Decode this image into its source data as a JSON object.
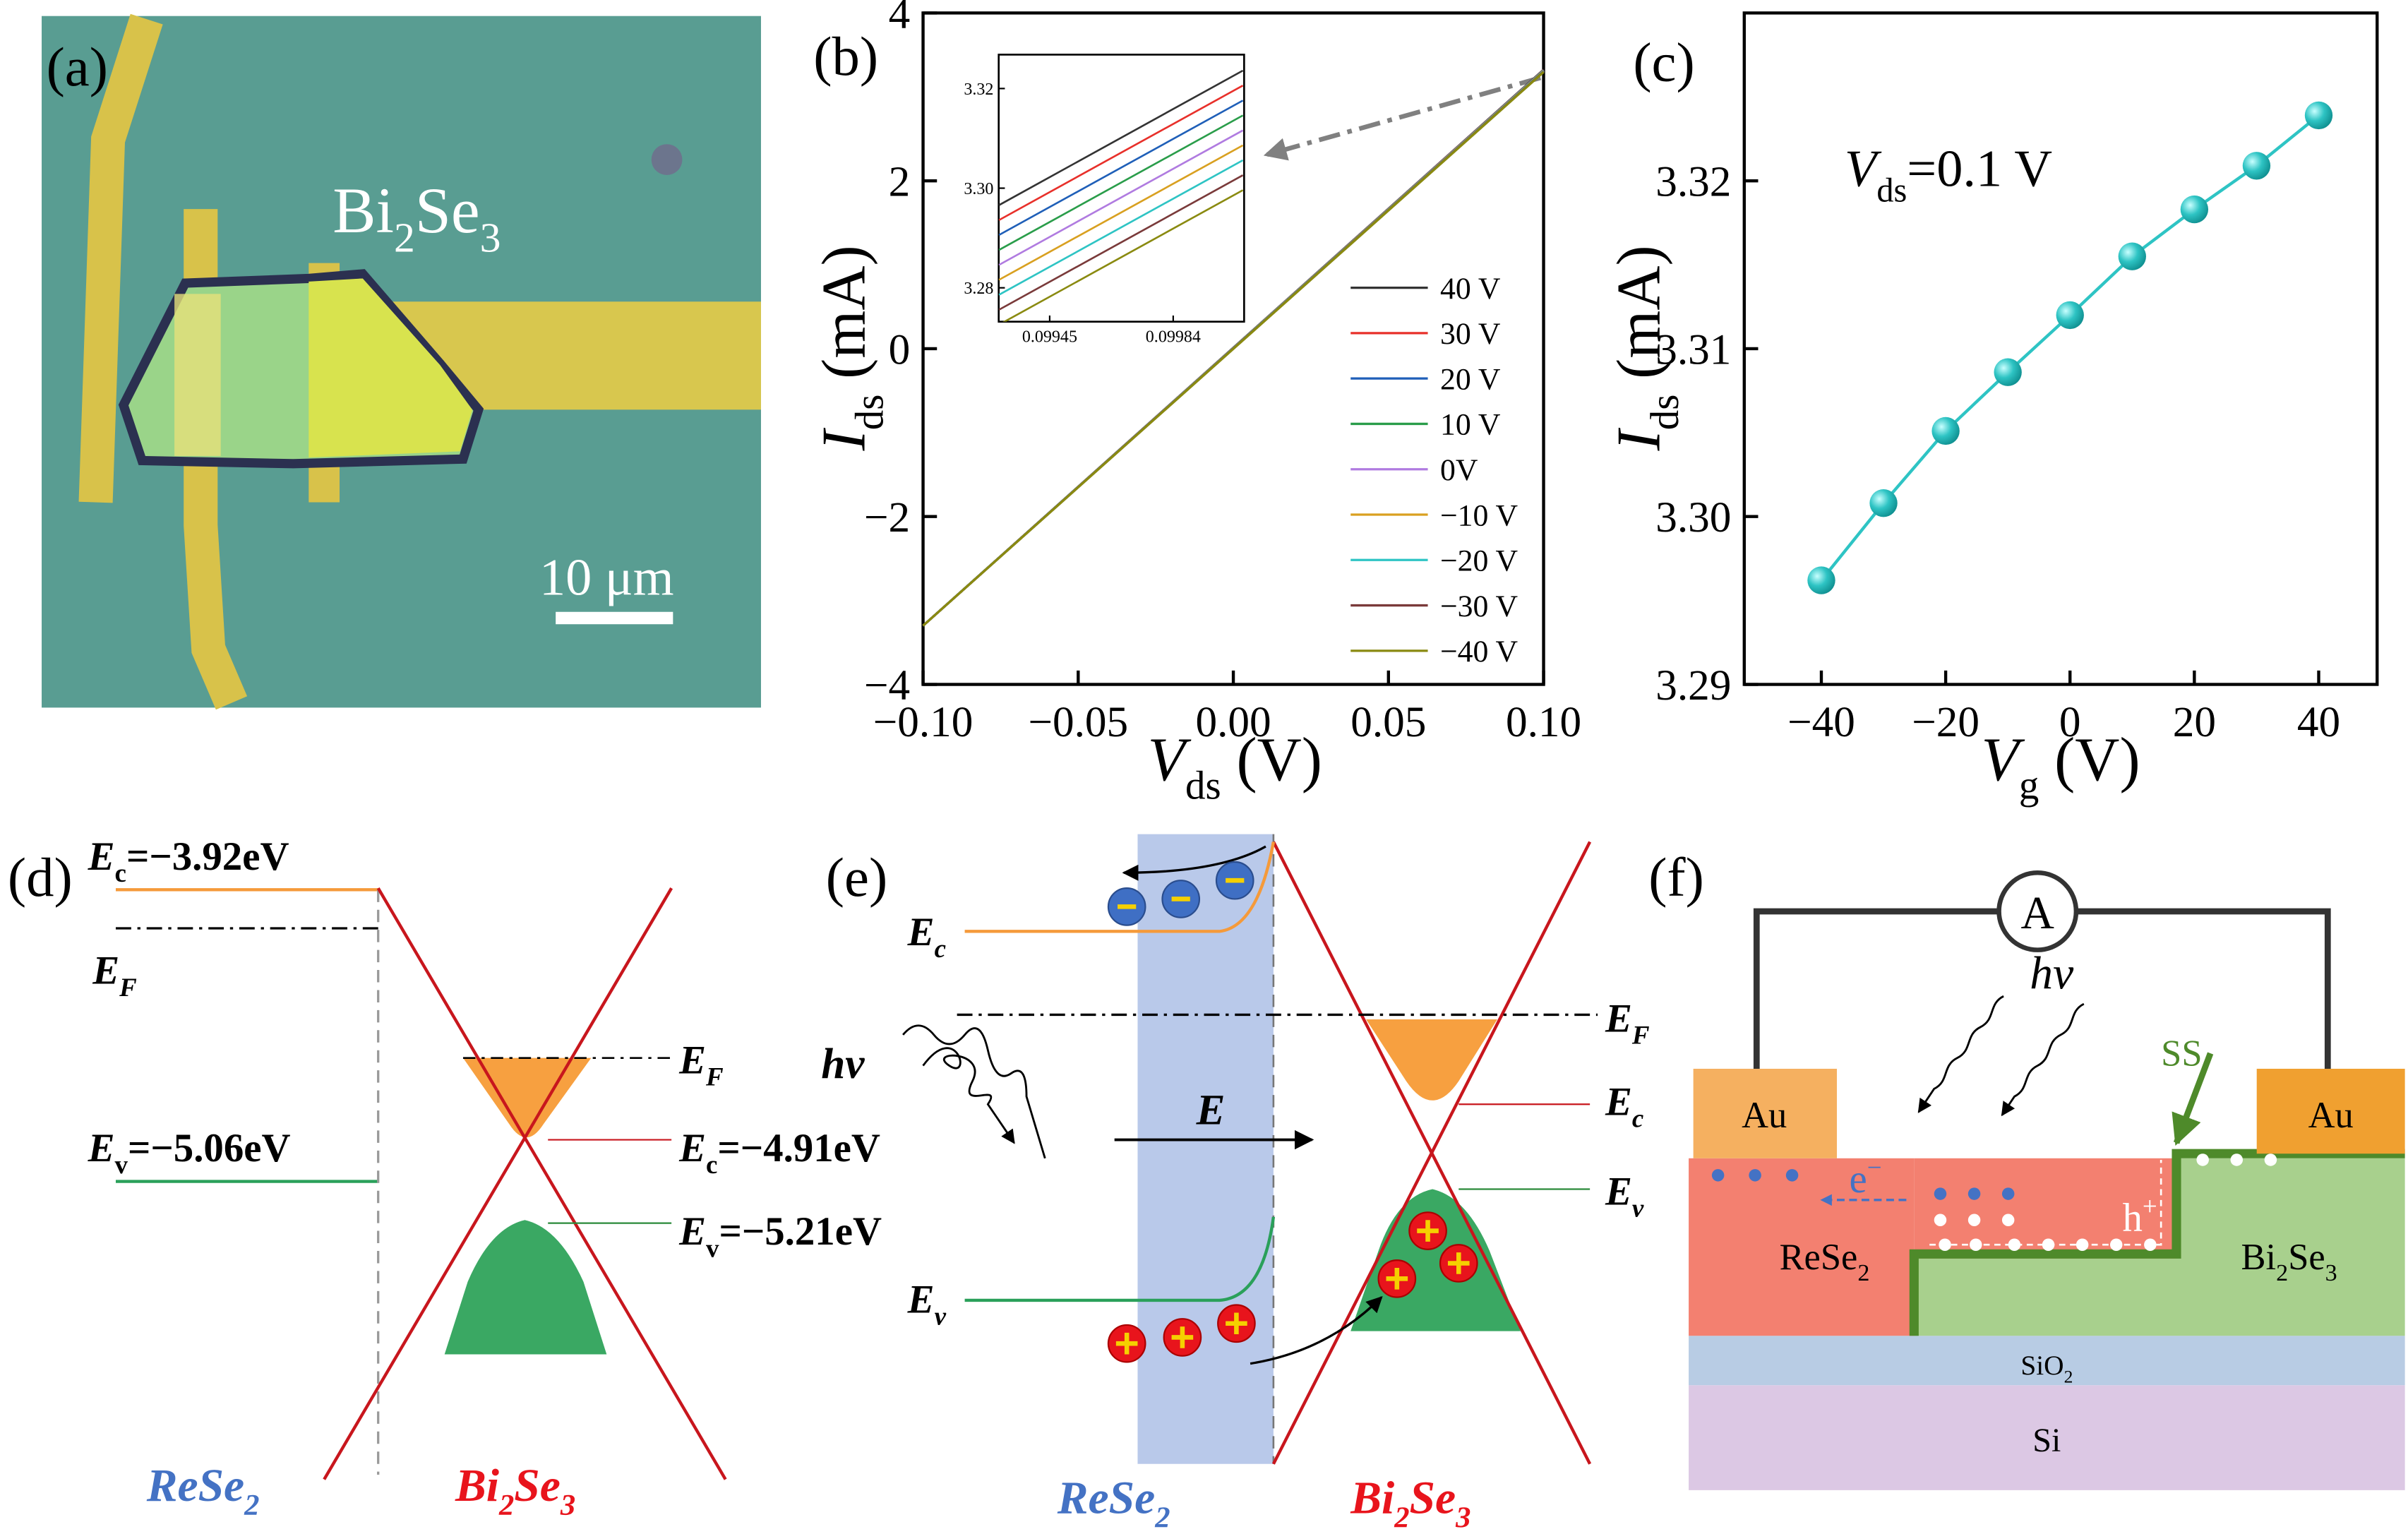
{
  "panel_labels": [
    "(a)",
    "(b)",
    "(c)",
    "(d)",
    "(e)",
    "(f)"
  ],
  "micrograph": {
    "material": [
      "Bi",
      "2",
      "Se",
      "3"
    ],
    "scale_bar": "10 μm"
  },
  "chart_data": [
    {
      "type": "line",
      "ylabel": [
        "I",
        "ds",
        " (mA)"
      ],
      "xlabel": [
        "V",
        "ds",
        " (V)"
      ],
      "x": [
        -0.1,
        0.1
      ],
      "xlim": [
        -0.1,
        0.1
      ],
      "xticks": [
        {
          "value": -0.1,
          "label": "−0.10"
        },
        {
          "value": -0.05,
          "label": "−0.05"
        },
        {
          "value": 0,
          "label": "0.00"
        },
        0.05,
        {
          "value": 0.1,
          "label": "0.10"
        }
      ],
      "ylim": [
        -4,
        4
      ],
      "yticks": [
        {
          "value": -4,
          "label": "−4"
        },
        {
          "value": -2,
          "label": "−2"
        },
        0,
        2,
        4
      ],
      "series": [
        {
          "name": "40 V",
          "color": "#333333",
          "values": [
            -3.3,
            3.3239
          ]
        },
        {
          "name": "30 V",
          "color": "#e8302a",
          "values": [
            -3.3,
            3.3209
          ]
        },
        {
          "name": "20 V",
          "color": "#1f5fb8",
          "values": [
            -3.3,
            3.3183
          ]
        },
        {
          "name": "10 V",
          "color": "#2a9d4a",
          "values": [
            -3.3,
            3.3155
          ]
        },
        {
          "name": "0V",
          "color": "#b07be0",
          "values": [
            -3.3,
            3.312
          ]
        },
        {
          "name": "−10 V",
          "color": "#d9a020",
          "values": [
            -3.3,
            3.3086
          ]
        },
        {
          "name": "−20 V",
          "color": "#2ec4c4",
          "values": [
            -3.3,
            3.3051
          ]
        },
        {
          "name": "−30 V",
          "color": "#7a3a3a",
          "values": [
            -3.3,
            3.3008
          ]
        },
        {
          "name": "−40 V",
          "color": "#8a8a10",
          "values": [
            -3.3,
            3.2962
          ]
        }
      ],
      "inset": {
        "x": [
          0.09929,
          0.10006
        ],
        "xlim": [
          0.099289,
          0.100064
        ],
        "xticks": [
          0.09945,
          0.09984
        ],
        "ylim": [
          3.2732,
          3.3268
        ],
        "yticks": [
          3.28,
          {
            "value": 3.3,
            "label": "3.30"
          },
          3.32
        ],
        "series": [
          {
            "values": [
              3.2966,
              3.3236
            ]
          },
          {
            "values": [
              3.2936,
              3.3206
            ]
          },
          {
            "values": [
              3.2906,
              3.3176
            ]
          },
          {
            "values": [
              3.2876,
              3.3146
            ]
          },
          {
            "values": [
              3.2846,
              3.3116
            ]
          },
          {
            "values": [
              3.2816,
              3.3086
            ]
          },
          {
            "values": [
              3.2786,
              3.3056
            ]
          },
          {
            "values": [
              3.2756,
              3.3026
            ]
          },
          {
            "values": [
              3.2726,
              3.2996
            ]
          }
        ]
      }
    },
    {
      "type": "scatter",
      "ylabel": [
        "I",
        "ds",
        " (mA)"
      ],
      "xlabel": [
        "V",
        "g",
        " (V)"
      ],
      "annotation": [
        "V",
        "ds",
        "=0.1 V"
      ],
      "color": "#2ec4c4",
      "x": [
        -40,
        -30,
        -20,
        -10,
        0,
        10,
        20,
        30,
        40
      ],
      "values": [
        3.2962,
        3.3008,
        3.3051,
        3.3086,
        3.312,
        3.3155,
        3.3183,
        3.3209,
        3.3239
      ],
      "xlim": [
        -52.4,
        49.4
      ],
      "xticks": [
        {
          "value": -40,
          "label": "−40"
        },
        {
          "value": -20,
          "label": "−20"
        },
        0,
        20,
        40
      ],
      "ylim": [
        3.29,
        3.33
      ],
      "yticks": [
        3.29,
        {
          "value": 3.3,
          "label": "3.30"
        },
        3.31,
        3.32
      ]
    }
  ],
  "band_diagram_d": {
    "ec_left": [
      "E",
      "c",
      "=−3.92eV"
    ],
    "ef_left": [
      "E",
      "F"
    ],
    "ev_left": [
      "E",
      "v",
      "=−5.06eV"
    ],
    "ef_right": [
      "E",
      "F"
    ],
    "ec_right": [
      "E",
      "c",
      "=−4.91eV"
    ],
    "ev_right": [
      "E",
      "v",
      "=−5.21eV"
    ],
    "left_material": [
      "ReSe",
      "2"
    ],
    "right_material": [
      "Bi",
      "2",
      "Se",
      "3"
    ]
  },
  "band_diagram_e": {
    "ec": [
      "E",
      "c"
    ],
    "ev": [
      "E",
      "v"
    ],
    "photon": "hν",
    "field": "E",
    "ef_right": [
      "E",
      "F"
    ],
    "ec_right": [
      "E",
      "c"
    ],
    "ev_right": [
      "E",
      "v"
    ],
    "left_material": [
      "ReSe",
      "2"
    ],
    "right_material": [
      "Bi",
      "2",
      "Se",
      "3"
    ]
  },
  "device_f": {
    "ammeter": "A",
    "photon": "hν",
    "ss": "SS",
    "au_left": "Au",
    "au_right": "Au",
    "electron": [
      "e",
      "−"
    ],
    "hole": [
      "h",
      "+"
    ],
    "rese2": [
      "ReSe",
      "2"
    ],
    "bi2se3": [
      "Bi",
      "2",
      "Se",
      "3"
    ],
    "sio2": [
      "SiO",
      "2"
    ],
    "si": "Si"
  }
}
